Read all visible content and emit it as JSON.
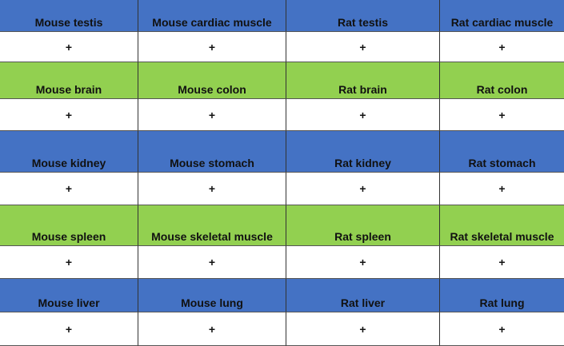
{
  "groups": [
    {
      "headers": [
        "Mouse testis",
        "Mouse cardiac muscle",
        "Rat testis",
        "Rat cardiac muscle"
      ],
      "marks": [
        "+",
        "+",
        "+",
        "+"
      ]
    },
    {
      "headers": [
        "Mouse brain",
        "Mouse colon",
        "Rat brain",
        "Rat colon"
      ],
      "marks": [
        "+",
        "+",
        "+",
        "+"
      ]
    },
    {
      "headers": [
        "Mouse kidney",
        "Mouse stomach",
        "Rat kidney",
        "Rat stomach"
      ],
      "marks": [
        "+",
        "+",
        "+",
        "+"
      ]
    },
    {
      "headers": [
        "Mouse spleen",
        "Mouse skeletal muscle",
        "Rat spleen",
        "Rat skeletal muscle"
      ],
      "marks": [
        "+",
        "+",
        "+",
        "+"
      ]
    },
    {
      "headers": [
        "Mouse liver",
        "Mouse lung",
        "Rat liver",
        "Rat lung"
      ],
      "marks": [
        "+",
        "+",
        "+",
        "+"
      ]
    }
  ]
}
